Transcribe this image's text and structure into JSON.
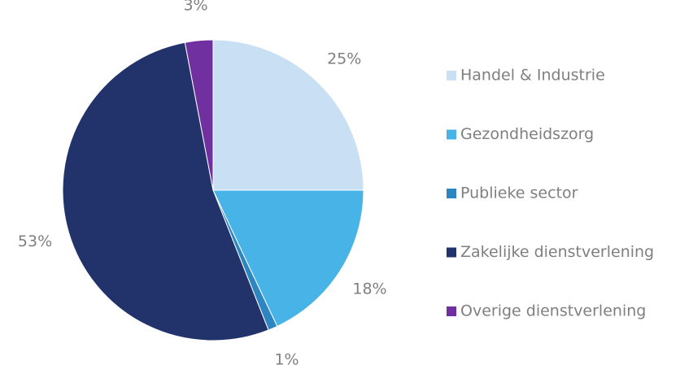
{
  "chart_data": {
    "type": "pie",
    "categories": [
      "Handel & Industrie",
      "Gezondheidszorg",
      "Publieke sector",
      "Zakelijke dienstverlening",
      "Overige dienstverlening"
    ],
    "values": [
      25,
      18,
      1,
      53,
      3
    ],
    "value_labels": [
      "25%",
      "18%",
      "1%",
      "53%",
      "3%"
    ],
    "colors": [
      "#c9e0f4",
      "#47b3e6",
      "#2e86c1",
      "#22336b",
      "#7030a0"
    ],
    "legend": "right"
  }
}
